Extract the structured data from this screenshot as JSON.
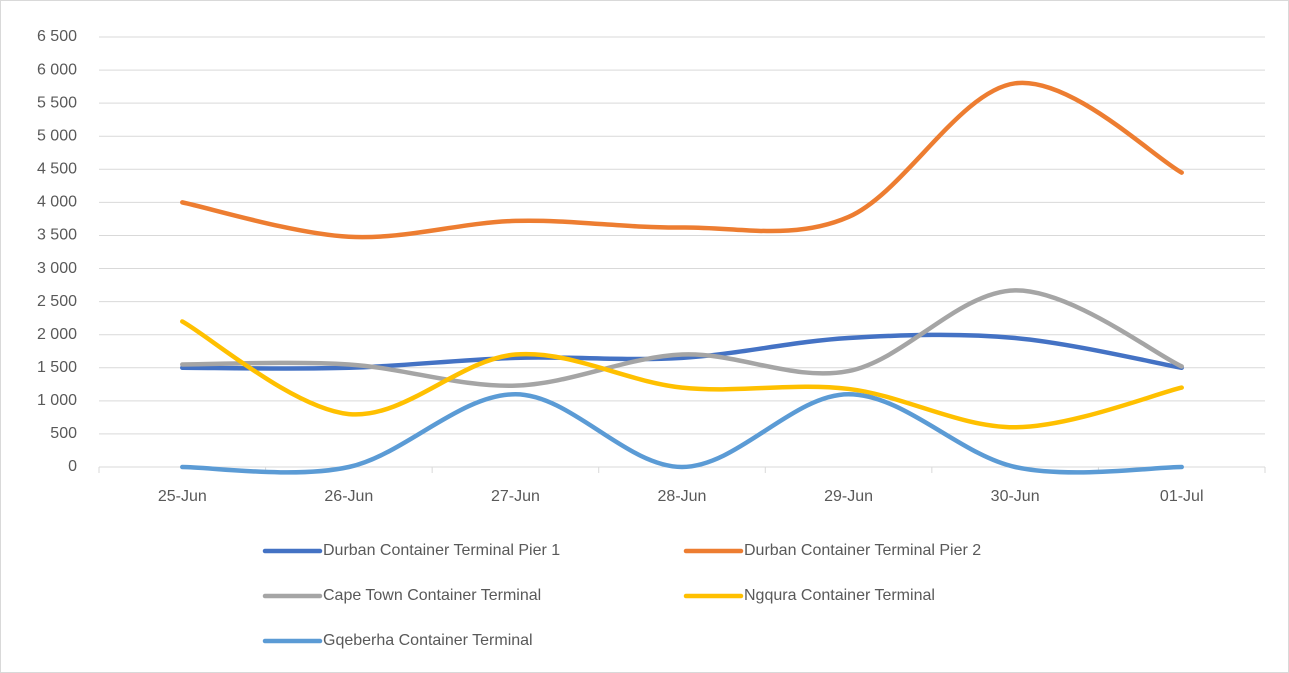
{
  "chart_data": {
    "type": "line",
    "categories": [
      "25-Jun",
      "26-Jun",
      "27-Jun",
      "28-Jun",
      "29-Jun",
      "30-Jun",
      "01-Jul"
    ],
    "series": [
      {
        "name": "Durban Container Terminal Pier 1",
        "color": "#4472c4",
        "values": [
          1500,
          1500,
          1650,
          1650,
          1950,
          1950,
          1500
        ]
      },
      {
        "name": "Durban Container Terminal Pier 2",
        "color": "#ed7d31",
        "values": [
          4000,
          3480,
          3720,
          3620,
          3780,
          5800,
          4450
        ]
      },
      {
        "name": "Cape Town Container Terminal",
        "color": "#a5a5a5",
        "values": [
          1550,
          1550,
          1230,
          1700,
          1450,
          2670,
          1520
        ]
      },
      {
        "name": "Ngqura Container Terminal",
        "color": "#ffc000",
        "values": [
          2200,
          800,
          1700,
          1200,
          1180,
          600,
          1200
        ]
      },
      {
        "name": "Gqeberha Container Terminal",
        "color": "#5b9bd5",
        "values": [
          0,
          0,
          1100,
          0,
          1100,
          0,
          0
        ]
      }
    ],
    "ylim": [
      0,
      6500
    ],
    "yticks": [
      0,
      500,
      {
        "value": 1000,
        "label": "1 000"
      },
      {
        "value": 1500,
        "label": "1 500"
      },
      {
        "value": 2000,
        "label": "2 000"
      },
      {
        "value": 2500,
        "label": "2 500"
      },
      {
        "value": 3000,
        "label": "3 000"
      },
      {
        "value": 3500,
        "label": "3 500"
      },
      {
        "value": 4000,
        "label": "4 000"
      },
      {
        "value": 4500,
        "label": "4 500"
      },
      {
        "value": 5000,
        "label": "5 000"
      },
      {
        "value": 5500,
        "label": "5 500"
      },
      {
        "value": 6000,
        "label": "6 000"
      },
      {
        "value": 6500,
        "label": "6 500"
      }
    ],
    "grid": true,
    "smooth": true,
    "legend": "bottom"
  }
}
